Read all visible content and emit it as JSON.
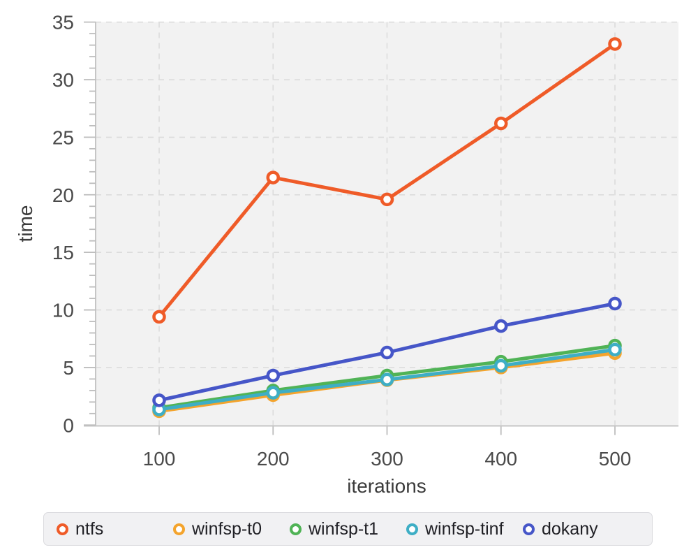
{
  "chart_data": {
    "type": "line",
    "title": "",
    "xlabel": "iterations",
    "ylabel": "time",
    "x": [
      100,
      200,
      300,
      400,
      500
    ],
    "x_tick_labels": [
      "100",
      "200",
      "300",
      "400",
      "500"
    ],
    "yticks": [
      0,
      5,
      10,
      15,
      20,
      25,
      30,
      35
    ],
    "y_minor_tick_step": 1,
    "ylim": [
      0,
      35
    ],
    "grid": "dashed light-gray gridlines at major ticks, horizontal and vertical",
    "plot_background": "#f2f2f2",
    "legend_position": "bottom",
    "marker_style": "open circle, white fill, colored ring",
    "series": [
      {
        "name": "ntfs",
        "color": "#ef5b28",
        "values": [
          9.4,
          21.5,
          19.6,
          26.2,
          33.1
        ]
      },
      {
        "name": "winfsp-t0",
        "color": "#f4a42d",
        "values": [
          1.2,
          2.6,
          3.9,
          5.0,
          6.25
        ]
      },
      {
        "name": "winfsp-t1",
        "color": "#50b356",
        "values": [
          1.5,
          3.0,
          4.3,
          5.5,
          6.9
        ]
      },
      {
        "name": "winfsp-tinf",
        "color": "#3eaec5",
        "values": [
          1.35,
          2.8,
          3.95,
          5.15,
          6.55
        ]
      },
      {
        "name": "dokany",
        "color": "#4656c8",
        "values": [
          2.15,
          4.3,
          6.3,
          8.6,
          10.55
        ]
      }
    ]
  }
}
